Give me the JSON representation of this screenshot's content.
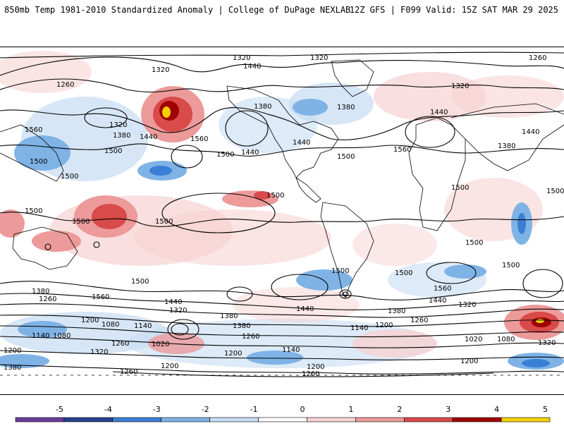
{
  "header": {
    "title": "850mb Temp 1981-2010 Standardized Anomaly | College of DuPage NEXLAB",
    "run_info": "12Z GFS | F099 Valid: 15Z SAT MAR 29 2025"
  },
  "colorbar": {
    "ticks": [
      "-5",
      "-4",
      "-3",
      "-2",
      "-1",
      "0",
      "1",
      "2",
      "3",
      "4",
      "5"
    ],
    "colors": [
      "#6a3d9a",
      "#27408b",
      "#3a7fd5",
      "#7fb3e6",
      "#c6dcf2",
      "#ffffff",
      "#f7d2d2",
      "#ec9a9a",
      "#d94a4a",
      "#a00000",
      "#f5d000"
    ]
  },
  "contour_labels": [
    {
      "text": "1320"
    },
    {
      "text": "1380"
    },
    {
      "text": "1320"
    },
    {
      "text": "1440"
    },
    {
      "text": "1260"
    },
    {
      "text": "1260"
    },
    {
      "text": "1320"
    },
    {
      "text": "1380"
    },
    {
      "text": "1500"
    },
    {
      "text": "1320"
    },
    {
      "text": "1440"
    },
    {
      "text": "1380"
    },
    {
      "text": "1560"
    },
    {
      "text": "1320"
    },
    {
      "text": "1380"
    },
    {
      "text": "1440"
    },
    {
      "text": "1500"
    },
    {
      "text": "1560"
    },
    {
      "text": "1500"
    },
    {
      "text": "1440"
    },
    {
      "text": "1440"
    },
    {
      "text": "1500"
    },
    {
      "text": "1560"
    },
    {
      "text": "1440"
    },
    {
      "text": "1380"
    },
    {
      "text": "1500"
    },
    {
      "text": "1500"
    },
    {
      "text": "1500"
    },
    {
      "text": "1500"
    },
    {
      "text": "1500"
    },
    {
      "text": "1500"
    },
    {
      "text": "1500"
    },
    {
      "text": "1500"
    },
    {
      "text": "1500"
    },
    {
      "text": "1500"
    },
    {
      "text": "1500"
    },
    {
      "text": "1500"
    },
    {
      "text": "1560"
    },
    {
      "text": "1380"
    },
    {
      "text": "1260"
    },
    {
      "text": "1560"
    },
    {
      "text": "1500"
    },
    {
      "text": "1440"
    },
    {
      "text": "1320"
    },
    {
      "text": "1380"
    },
    {
      "text": "1440"
    },
    {
      "text": "1380"
    },
    {
      "text": "1440"
    },
    {
      "text": "1320"
    },
    {
      "text": "1200"
    },
    {
      "text": "1080"
    },
    {
      "text": "1140"
    },
    {
      "text": "1380"
    },
    {
      "text": "1260"
    },
    {
      "text": "1140"
    },
    {
      "text": "1200"
    },
    {
      "text": "1260"
    },
    {
      "text": "1140"
    },
    {
      "text": "1080"
    },
    {
      "text": "1260"
    },
    {
      "text": "1020"
    },
    {
      "text": "1020"
    },
    {
      "text": "1080"
    },
    {
      "text": "1320"
    },
    {
      "text": "1200"
    },
    {
      "text": "1320"
    },
    {
      "text": "1200"
    },
    {
      "text": "1140"
    },
    {
      "text": "1380"
    },
    {
      "text": "1260"
    },
    {
      "text": "1200"
    },
    {
      "text": "1200"
    },
    {
      "text": "1260"
    },
    {
      "text": "1200"
    }
  ]
}
